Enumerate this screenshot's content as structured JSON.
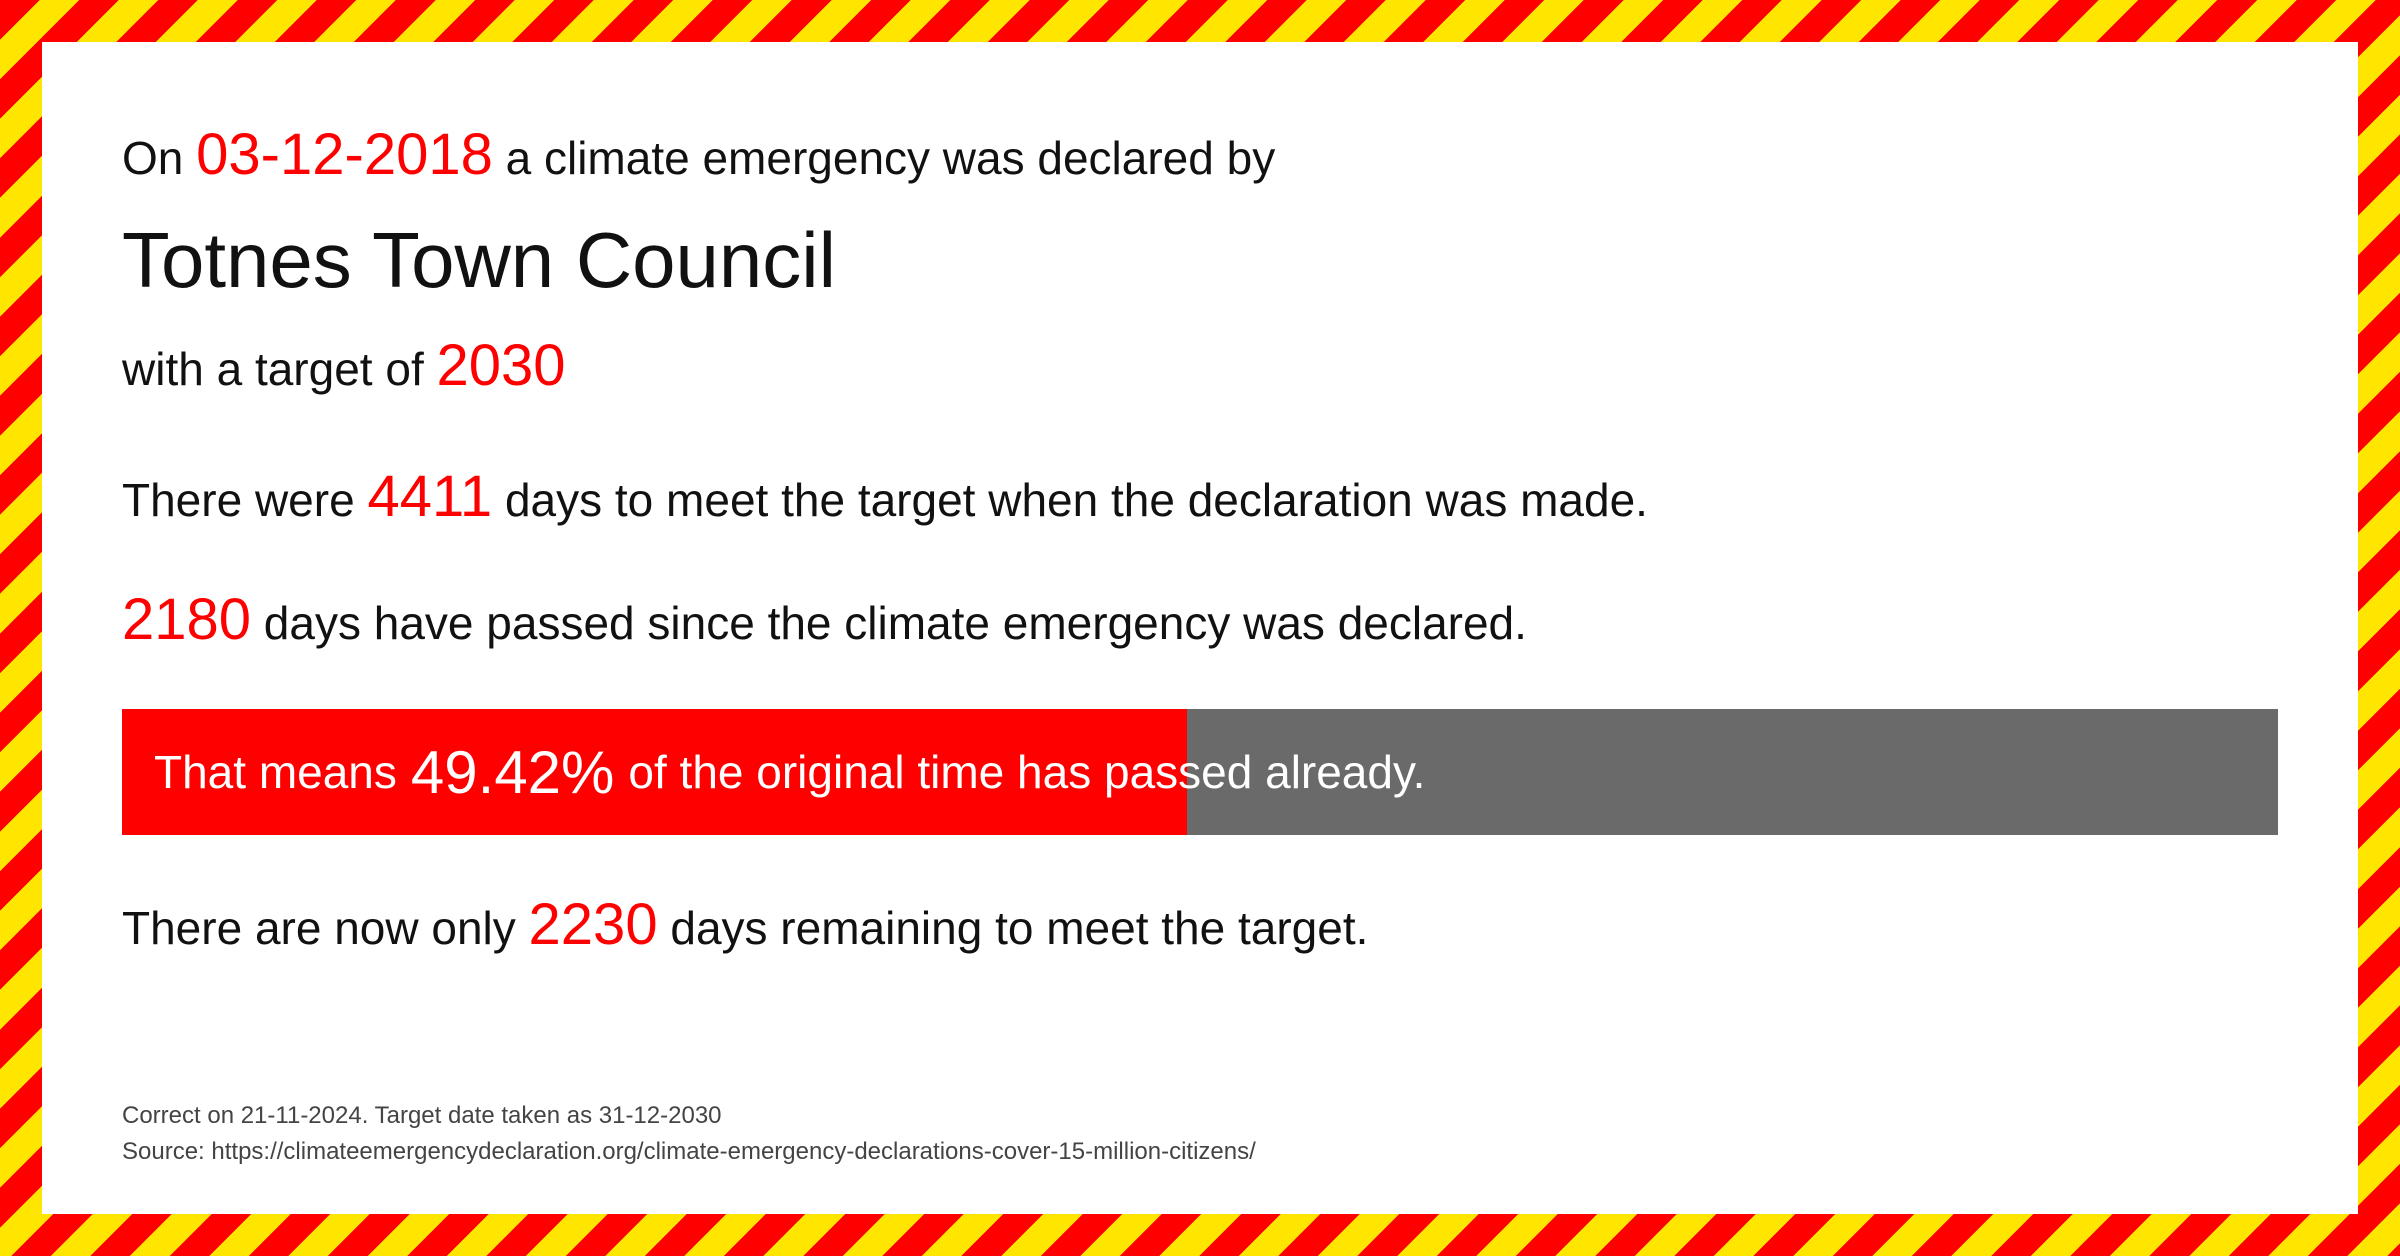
{
  "intro": {
    "prefix": "On ",
    "date": "03-12-2018",
    "suffix": " a climate emergency was declared by"
  },
  "council_name": "Totnes Town Council",
  "target": {
    "prefix": "with a target of  ",
    "year": "2030"
  },
  "days_total": {
    "prefix": "There were ",
    "value": "4411",
    "suffix": "  days to meet the target when the declaration was made."
  },
  "days_passed": {
    "value": "2180",
    "suffix": " days have passed since the climate emergency was declared."
  },
  "progress": {
    "prefix": "That means ",
    "percent_label": "49.42%",
    "percent_value": 49.42,
    "suffix": " of the original time has passed already.",
    "bar_fill_color": "#ff0000",
    "bar_bg_color": "#6a6a6a",
    "text_color": "#ffffff"
  },
  "days_remaining": {
    "prefix": "There are now only ",
    "value": "2230",
    "suffix": " days remaining to meet the target."
  },
  "footer": {
    "line1": "Correct on 21-11-2024. Target date taken as 31-12-2030",
    "line2": "Source: https://climateemergencydeclaration.org/climate-emergency-declarations-cover-15-million-citizens/"
  },
  "colors": {
    "accent": "#ff0000",
    "stripe_yellow": "#ffe600",
    "text": "#111111",
    "footer_text": "#444444",
    "background": "#ffffff"
  }
}
